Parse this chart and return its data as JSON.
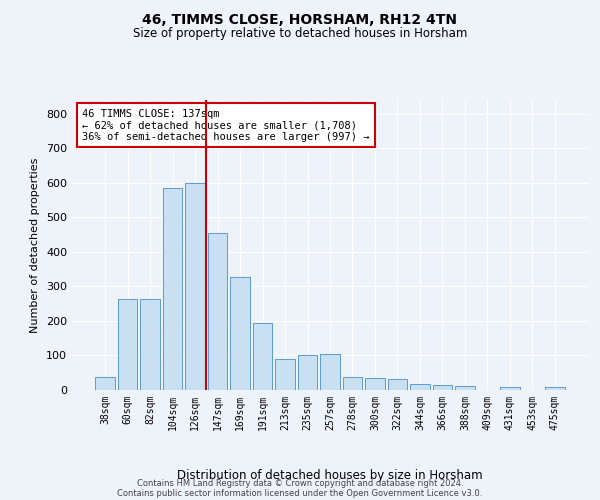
{
  "title1": "46, TIMMS CLOSE, HORSHAM, RH12 4TN",
  "title2": "Size of property relative to detached houses in Horsham",
  "xlabel": "Distribution of detached houses by size in Horsham",
  "ylabel": "Number of detached properties",
  "footer1": "Contains HM Land Registry data © Crown copyright and database right 2024.",
  "footer2": "Contains public sector information licensed under the Open Government Licence v3.0.",
  "annotation_title": "46 TIMMS CLOSE: 137sqm",
  "annotation_line1": "← 62% of detached houses are smaller (1,708)",
  "annotation_line2": "36% of semi-detached houses are larger (997) →",
  "vline_position": 4,
  "bar_color": "#c9dff2",
  "bar_edge_color": "#5b9bd5",
  "vline_color": "#cc0000",
  "annotation_box_color": "#cc0000",
  "annotation_fill": "white",
  "categories": [
    "38sqm",
    "60sqm",
    "82sqm",
    "104sqm",
    "126sqm",
    "147sqm",
    "169sqm",
    "191sqm",
    "213sqm",
    "235sqm",
    "257sqm",
    "278sqm",
    "300sqm",
    "322sqm",
    "344sqm",
    "366sqm",
    "388sqm",
    "409sqm",
    "431sqm",
    "453sqm",
    "475sqm"
  ],
  "values": [
    37,
    265,
    265,
    585,
    600,
    455,
    328,
    195,
    90,
    100,
    105,
    37,
    35,
    33,
    18,
    15,
    12,
    0,
    8,
    0,
    8
  ],
  "ylim": [
    0,
    840
  ],
  "yticks": [
    0,
    100,
    200,
    300,
    400,
    500,
    600,
    700,
    800
  ],
  "background_color": "#eef2f9",
  "plot_bg_color": "#eef2f9",
  "grid_color": "white",
  "figsize": [
    6.0,
    5.0
  ],
  "dpi": 100
}
